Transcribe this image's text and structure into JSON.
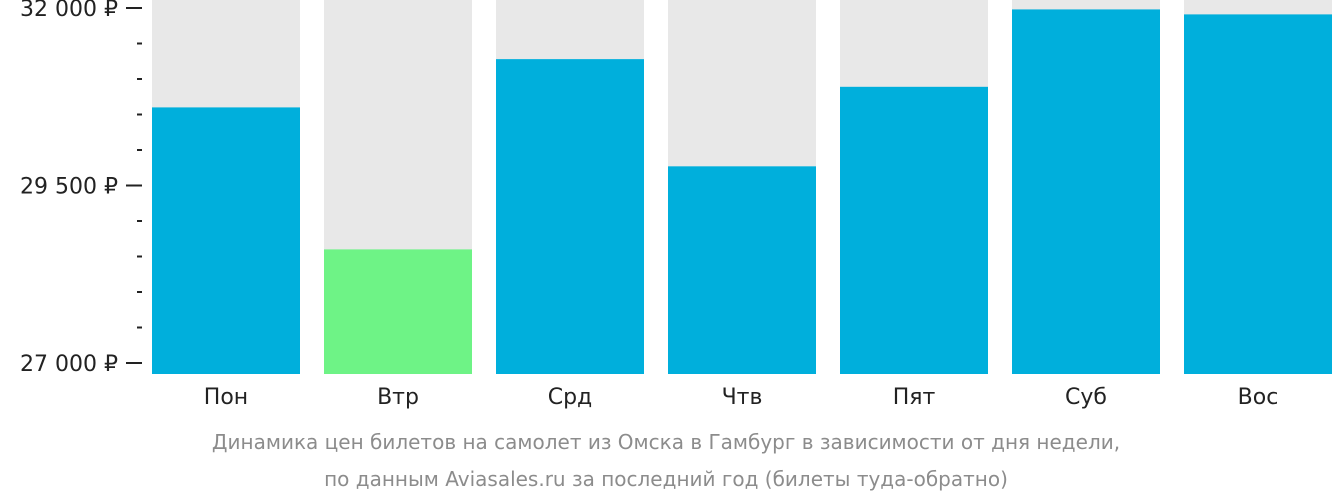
{
  "chart_data": {
    "type": "bar",
    "categories": [
      "Пон",
      "Втр",
      "Срд",
      "Чтв",
      "Пят",
      "Суб",
      "Вос"
    ],
    "values": [
      30600,
      28600,
      31280,
      29770,
      30890,
      31980,
      31910
    ],
    "ylim": [
      27000,
      32000
    ],
    "y_ticks": [
      {
        "value": 32000,
        "label": "32 000 ₽"
      },
      {
        "value": 29500,
        "label": "29 500 ₽"
      },
      {
        "value": 27000,
        "label": "27 000 ₽"
      }
    ],
    "minor_tick_step": 500,
    "highlight_index": 1,
    "colors": {
      "bar": "#00afdc",
      "highlight": "#6ef386",
      "background_bar": "#e8e8e8",
      "axis": "#222222"
    }
  },
  "caption": {
    "line1": "Динамика цен билетов на самолет из Омска в Гамбург в зависимости от дня недели,",
    "line2": "по данным Aviasales.ru за последний год (билеты туда-обратно)"
  }
}
